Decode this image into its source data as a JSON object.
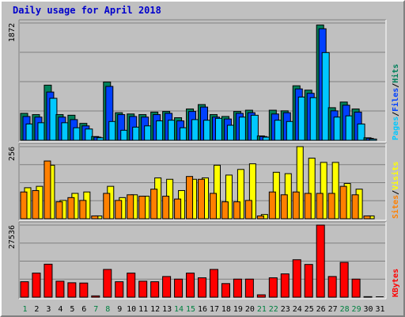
{
  "title": "Daily usage for April 2018",
  "colors": {
    "hits": "#00805a",
    "files": "#0040ff",
    "pages": "#00c8ff",
    "visits": "#ffff00",
    "sites": "#ff8000",
    "kbytes": "#ff0000",
    "weekday_label": "#000000",
    "weekend_label": "#008040"
  },
  "legend": {
    "top": [
      "Pages",
      "/",
      "Files",
      "/",
      "Hits"
    ],
    "middle": [
      "Sites",
      "/",
      "Visits"
    ],
    "bottom": [
      "KBytes"
    ]
  },
  "chart_data": [
    {
      "type": "bar",
      "title": "Daily usage for April 2018",
      "panel": "hits-files-pages",
      "axis_max_label": "1872",
      "ylim": [
        0,
        1872
      ],
      "grid": true,
      "categories": [
        "1",
        "2",
        "3",
        "4",
        "5",
        "6",
        "7",
        "8",
        "9",
        "10",
        "11",
        "12",
        "13",
        "14",
        "15",
        "16",
        "17",
        "18",
        "19",
        "20",
        "21",
        "22",
        "23",
        "24",
        "25",
        "26",
        "27",
        "28",
        "29",
        "30",
        "31"
      ],
      "series": [
        {
          "name": "Hits",
          "values": [
            430,
            410,
            880,
            410,
            400,
            270,
            60,
            930,
            440,
            420,
            410,
            450,
            460,
            360,
            500,
            570,
            410,
            380,
            460,
            480,
            70,
            480,
            470,
            870,
            800,
            1840,
            520,
            610,
            500,
            40,
            0
          ]
        },
        {
          "name": "Files",
          "values": [
            380,
            370,
            770,
            370,
            330,
            230,
            50,
            860,
            410,
            380,
            370,
            410,
            430,
            310,
            460,
            530,
            370,
            340,
            430,
            440,
            60,
            420,
            440,
            820,
            750,
            1780,
            470,
            560,
            450,
            30,
            0
          ]
        },
        {
          "name": "Pages",
          "values": [
            260,
            280,
            670,
            280,
            200,
            180,
            40,
            300,
            160,
            210,
            230,
            310,
            320,
            200,
            330,
            320,
            350,
            240,
            370,
            400,
            50,
            320,
            300,
            690,
            680,
            1400,
            370,
            390,
            260,
            20,
            0
          ]
        }
      ]
    },
    {
      "type": "bar",
      "panel": "visits-sites",
      "axis_max_label": "256",
      "ylim": [
        0,
        256
      ],
      "grid": true,
      "categories": [
        "1",
        "2",
        "3",
        "4",
        "5",
        "6",
        "7",
        "8",
        "9",
        "10",
        "11",
        "12",
        "13",
        "14",
        "15",
        "16",
        "17",
        "18",
        "19",
        "20",
        "21",
        "22",
        "23",
        "24",
        "25",
        "26",
        "27",
        "28",
        "29",
        "30",
        "31"
      ],
      "series": [
        {
          "name": "Visits",
          "values": [
            110,
            115,
            190,
            65,
            90,
            95,
            10,
            115,
            75,
            85,
            80,
            145,
            140,
            100,
            140,
            145,
            190,
            155,
            175,
            195,
            15,
            165,
            160,
            256,
            215,
            200,
            200,
            125,
            105,
            10,
            0
          ]
        },
        {
          "name": "Sites",
          "values": [
            95,
            100,
            205,
            60,
            75,
            65,
            10,
            90,
            65,
            85,
            80,
            105,
            80,
            70,
            150,
            140,
            90,
            60,
            60,
            65,
            10,
            95,
            85,
            95,
            90,
            90,
            90,
            115,
            85,
            10,
            0
          ]
        }
      ]
    },
    {
      "type": "bar",
      "panel": "kbytes",
      "axis_max_label": "27536",
      "ylim": [
        0,
        27536
      ],
      "grid": true,
      "categories": [
        "1",
        "2",
        "3",
        "4",
        "5",
        "6",
        "7",
        "8",
        "9",
        "10",
        "11",
        "12",
        "13",
        "14",
        "15",
        "16",
        "17",
        "18",
        "19",
        "20",
        "21",
        "22",
        "23",
        "24",
        "25",
        "26",
        "27",
        "28",
        "29",
        "30",
        "31"
      ],
      "series": [
        {
          "name": "KBytes",
          "values": [
            5900,
            9200,
            12600,
            6100,
            5500,
            5400,
            500,
            10600,
            5900,
            9200,
            6100,
            5900,
            7900,
            6900,
            9200,
            7400,
            10600,
            5200,
            6900,
            6900,
            900,
            7400,
            8900,
            14300,
            12500,
            27536,
            7900,
            13300,
            6900,
            200,
            0
          ]
        }
      ]
    }
  ]
}
